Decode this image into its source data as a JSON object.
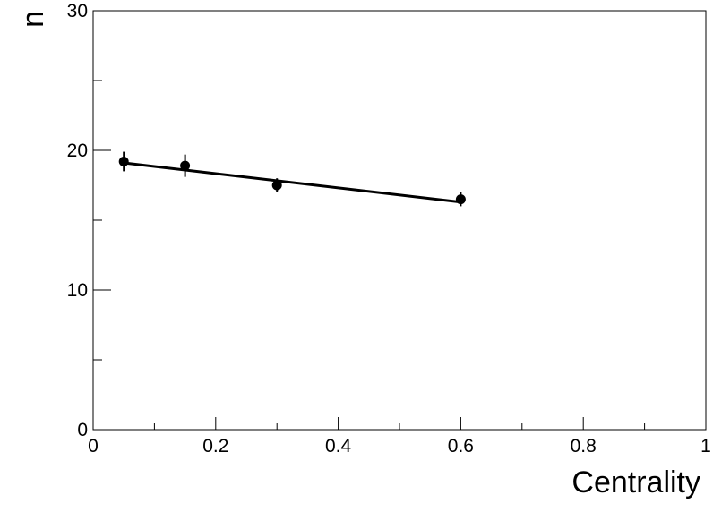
{
  "chart_data": {
    "type": "scatter",
    "title": "",
    "xlabel": "Centrality",
    "ylabel": "n",
    "xlim": [
      0,
      1
    ],
    "ylim": [
      0,
      30
    ],
    "x_ticks": [
      "0",
      "0.2",
      "0.4",
      "0.6",
      "0.8",
      "1"
    ],
    "y_ticks": [
      "0",
      "10",
      "20",
      "30"
    ],
    "grid": false,
    "legend": "none",
    "series": [
      {
        "x": [
          0.05,
          0.15,
          0.3,
          0.6
        ],
        "y": [
          19.2,
          18.9,
          17.5,
          16.5
        ],
        "yerr": [
          0.7,
          0.8,
          0.5,
          0.5
        ],
        "color": "#000000"
      }
    ],
    "fit_line": {
      "x": [
        0.05,
        0.6
      ],
      "y": [
        19.1,
        16.3
      ],
      "color": "#000000"
    }
  }
}
